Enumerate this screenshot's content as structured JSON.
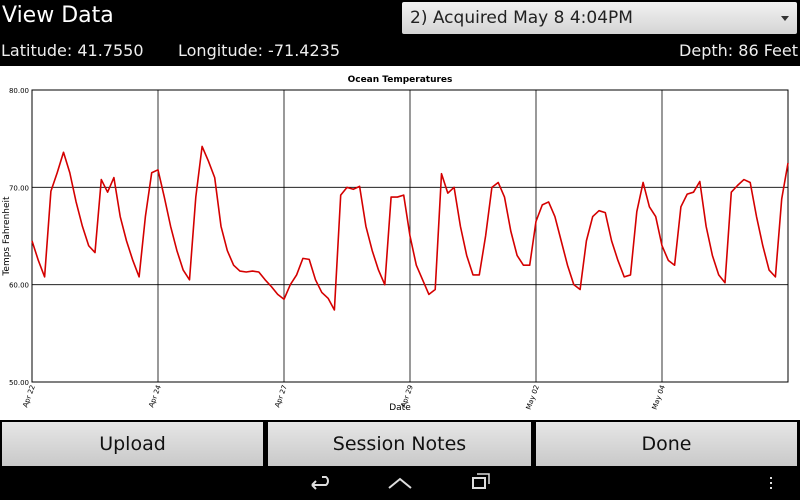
{
  "header": {
    "title": "View Data",
    "dropdown": "2) Acquired May 8 4:04PM"
  },
  "info": {
    "latitude": "Latitude: 41.7550",
    "longitude": "Longitude: -71.4235",
    "depth": "Depth: 86 Feet"
  },
  "buttons": [
    "Upload",
    "Session Notes",
    "Done"
  ],
  "chart_data": {
    "type": "line",
    "title": "Ocean Temperatures",
    "x_label": "Date",
    "y_label": "Temps Fahrenheit",
    "color": "#d40000",
    "grid": true,
    "xlim": [
      0,
      120
    ],
    "xticks": [
      {
        "value": 0,
        "label": "Apr 22"
      },
      {
        "value": 20,
        "label": "Apr 24"
      },
      {
        "value": 40,
        "label": "Apr 27"
      },
      {
        "value": 60,
        "label": "Apr 29"
      },
      {
        "value": 80,
        "label": "May 02"
      },
      {
        "value": 100,
        "label": "May 04"
      }
    ],
    "ylim": [
      50,
      80
    ],
    "yticks": [
      {
        "value": 50,
        "label": "50.00"
      },
      {
        "value": 60,
        "label": "60.00"
      },
      {
        "value": 70,
        "label": "70.00"
      },
      {
        "value": 80,
        "label": "80.00"
      }
    ],
    "values": [
      64.5,
      62.5,
      60.8,
      69.6,
      71.5,
      73.6,
      71.5,
      68.5,
      66,
      64,
      63.3,
      70.8,
      69.5,
      71,
      67,
      64.5,
      62.5,
      60.8,
      67,
      71.5,
      71.8,
      69,
      66,
      63.5,
      61.5,
      60.5,
      69,
      74.2,
      72.7,
      71,
      66,
      63.5,
      62,
      61.4,
      61.3,
      61.4,
      61.3,
      60.5,
      59.8,
      59,
      58.5,
      60,
      61,
      62.7,
      62.6,
      60.5,
      59.2,
      58.6,
      57.4,
      69.2,
      70,
      69.8,
      70.1,
      66,
      63.5,
      61.5,
      60,
      69,
      69,
      69.2,
      65,
      62,
      60.5,
      59,
      59.5,
      71.4,
      69.4,
      70,
      66,
      63,
      61,
      61,
      65,
      70,
      70.5,
      69,
      65.5,
      63,
      62,
      62,
      66.5,
      68.2,
      68.5,
      67,
      64.5,
      62,
      60,
      59.5,
      64.5,
      67,
      67.6,
      67.4,
      64.5,
      62.5,
      60.8,
      61,
      67.5,
      70.5,
      68,
      67,
      64,
      62.5,
      62,
      68,
      69.3,
      69.5,
      70.6,
      66,
      63,
      61,
      60.2,
      69.5,
      70.2,
      70.8,
      70.5,
      67,
      64,
      61.5,
      60.8,
      68.8,
      72.5
    ]
  }
}
